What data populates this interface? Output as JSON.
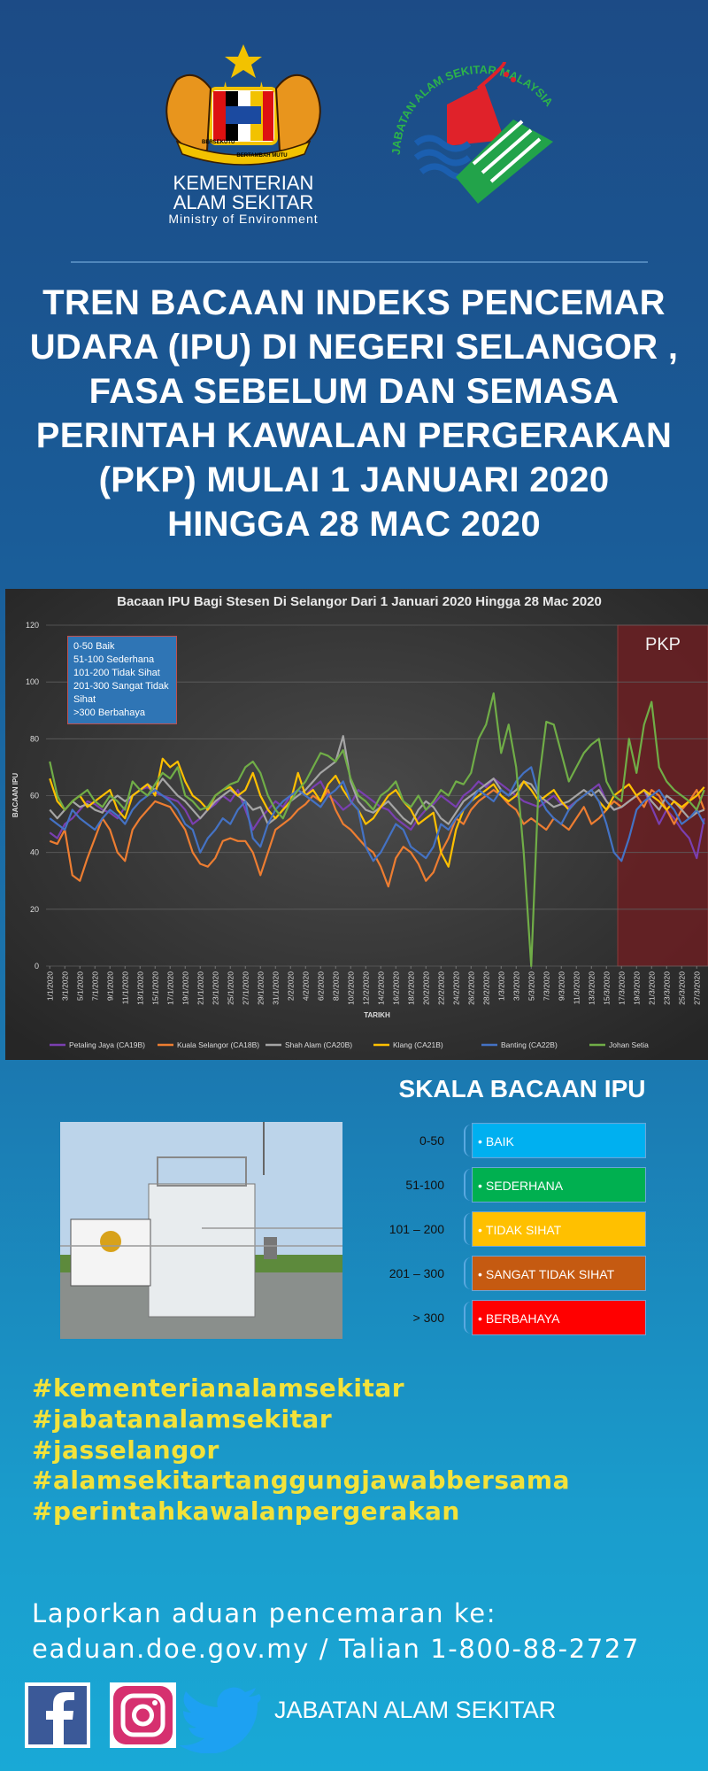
{
  "header": {
    "ministry": {
      "motto_left": "BERSEKUTU",
      "motto_right": "BERTAMBAH MUTU",
      "line1": "KEMENTERIAN",
      "line2": "ALAM SEKITAR",
      "english": "Ministry of Environment"
    },
    "department_logo": "JABATAN ALAM SEKITAR MALAYSIA"
  },
  "title": [
    "TREN BACAAN INDEKS PENCEMAR",
    "UDARA (IPU) DI NEGERI SELANGOR ,",
    "FASA SEBELUM DAN SEMASA",
    "PERINTAH KAWALAN PERGERAKAN",
    "(PKP) MULAI 1 JANUARI 2020",
    "HINGGA 28 MAC 2020"
  ],
  "chart_data": {
    "type": "line",
    "title": "Bacaan  IPU Bagi Stesen  Di Selangor  Dari  1 Januari  2020 Hingga  28 Mac 2020",
    "y_label": "BACAAN IPU",
    "x_label": "TARIKH",
    "legend_note": [
      "0-50 Baik",
      "51-100 Sederhana",
      "101-200  Tidak Sihat",
      "201-300 Sangat Tidak Sihat",
      ">300 Berbahaya"
    ],
    "highlight": {
      "label": "PKP",
      "from": "17/3/2020",
      "color": "#6b1f22"
    },
    "ylim": [
      0,
      120
    ],
    "yticks": [
      0,
      20,
      40,
      60,
      80,
      100,
      120
    ],
    "grid": true,
    "categories": [
      "1/1/2020",
      null,
      "3/1/2020",
      null,
      "5/1/2020",
      null,
      "7/1/2020",
      null,
      "9/1/2020",
      null,
      "11/1/2020",
      null,
      "13/1/2020",
      null,
      "15/1/2020",
      null,
      "17/1/2020",
      null,
      "19/1/2020",
      null,
      "21/1/2020",
      null,
      "23/1/2020",
      null,
      "25/1/2020",
      null,
      "27/1/2020",
      null,
      "29/1/2020",
      null,
      "31/1/2020",
      null,
      "2/2/2020",
      null,
      "4/2/2020",
      null,
      "6/2/2020",
      null,
      "8/2/2020",
      null,
      "10/2/2020",
      null,
      "12/2/2020",
      null,
      "14/2/2020",
      null,
      "16/2/2020",
      null,
      "18/2/2020",
      null,
      "20/2/2020",
      null,
      "22/2/2020",
      null,
      "24/2/2020",
      null,
      "26/2/2020",
      null,
      "28/2/2020",
      null,
      "1/3/2020",
      null,
      "3/3/2020",
      null,
      "5/3/2020",
      null,
      "7/3/2020",
      null,
      "9/3/2020",
      null,
      "11/3/2020",
      null,
      "13/3/2020",
      null,
      "15/3/2020",
      null,
      "17/3/2020",
      null,
      "19/3/2020",
      null,
      "21/3/2020",
      null,
      "23/3/2020",
      null,
      "25/3/2020",
      null,
      "27/3/2020",
      null
    ],
    "series": [
      {
        "name": "Petaling Jaya (CA19B)",
        "color": "#7a3fb0",
        "values": [
          47,
          45,
          50,
          52,
          55,
          58,
          57,
          55,
          54,
          52,
          56,
          60,
          62,
          63,
          61,
          60,
          59,
          58,
          55,
          50,
          52,
          55,
          57,
          60,
          58,
          62,
          55,
          48,
          52,
          55,
          58,
          56,
          60,
          62,
          60,
          63,
          65,
          60,
          58,
          55,
          57,
          62,
          60,
          58,
          56,
          55,
          52,
          50,
          48,
          52,
          55,
          57,
          60,
          58,
          56,
          60,
          62,
          65,
          63,
          66,
          64,
          62,
          60,
          58,
          57,
          56,
          58,
          60,
          57,
          56,
          58,
          60,
          62,
          64,
          58,
          55,
          56,
          58,
          60,
          62,
          56,
          50,
          55,
          52,
          48,
          45,
          38,
          52
        ]
      },
      {
        "name": "Kuala Selangor (CA18B)",
        "color": "#ed7d31",
        "values": [
          44,
          43,
          48,
          32,
          30,
          38,
          45,
          52,
          48,
          40,
          37,
          48,
          52,
          55,
          58,
          57,
          56,
          52,
          48,
          40,
          36,
          35,
          38,
          44,
          45,
          44,
          44,
          40,
          32,
          40,
          48,
          50,
          52,
          55,
          57,
          60,
          58,
          62,
          55,
          50,
          48,
          45,
          42,
          40,
          35,
          28,
          38,
          42,
          40,
          36,
          30,
          33,
          40,
          45,
          52,
          50,
          55,
          58,
          60,
          62,
          60,
          57,
          55,
          50,
          52,
          50,
          48,
          52,
          50,
          48,
          52,
          56,
          50,
          52,
          55,
          58,
          56,
          58,
          60,
          56,
          62,
          60,
          55,
          50,
          55,
          58,
          62,
          55
        ]
      },
      {
        "name": "Shah Alam (CA20B)",
        "color": "#a5a5a5",
        "values": [
          55,
          52,
          55,
          58,
          56,
          57,
          55,
          54,
          58,
          60,
          58,
          60,
          62,
          64,
          62,
          66,
          63,
          60,
          58,
          55,
          52,
          55,
          58,
          60,
          62,
          60,
          58,
          55,
          56,
          50,
          52,
          55,
          58,
          60,
          62,
          65,
          68,
          70,
          72,
          81,
          65,
          58,
          55,
          54,
          56,
          58,
          55,
          52,
          50,
          55,
          58,
          56,
          52,
          50,
          54,
          58,
          60,
          62,
          64,
          66,
          62,
          60,
          62,
          65,
          64,
          60,
          58,
          56,
          57,
          58,
          60,
          62,
          60,
          62,
          58,
          55,
          56,
          58,
          60,
          62,
          58,
          55,
          60,
          58,
          55,
          52,
          54,
          55
        ]
      },
      {
        "name": "Klang (CA21B)",
        "color": "#ffc000",
        "values": [
          66,
          58,
          55,
          58,
          60,
          56,
          58,
          60,
          62,
          55,
          52,
          60,
          62,
          64,
          60,
          73,
          70,
          72,
          65,
          60,
          58,
          55,
          60,
          62,
          63,
          60,
          62,
          68,
          60,
          55,
          52,
          55,
          58,
          68,
          60,
          62,
          58,
          64,
          67,
          62,
          58,
          55,
          50,
          52,
          56,
          60,
          62,
          58,
          55,
          50,
          52,
          54,
          40,
          35,
          48,
          55,
          58,
          60,
          62,
          64,
          60,
          58,
          60,
          65,
          62,
          58,
          60,
          62,
          58,
          55,
          58,
          60,
          62,
          58,
          55,
          60,
          62,
          64,
          60,
          62,
          60,
          58,
          55,
          58,
          56,
          58,
          60,
          63
        ]
      },
      {
        "name": "Banting (CA22B)",
        "color": "#4472c4",
        "values": [
          52,
          50,
          48,
          55,
          52,
          50,
          48,
          52,
          55,
          53,
          50,
          55,
          58,
          60,
          62,
          60,
          58,
          55,
          50,
          48,
          40,
          45,
          48,
          52,
          50,
          55,
          58,
          45,
          42,
          50,
          55,
          58,
          60,
          62,
          60,
          58,
          56,
          60,
          62,
          65,
          58,
          55,
          42,
          37,
          40,
          45,
          50,
          48,
          42,
          40,
          38,
          42,
          50,
          48,
          52,
          55,
          58,
          62,
          60,
          58,
          62,
          60,
          65,
          68,
          70,
          60,
          55,
          52,
          50,
          55,
          58,
          60,
          62,
          58,
          50,
          40,
          37,
          45,
          55,
          58,
          60,
          62,
          58,
          55,
          50,
          52,
          55,
          50
        ]
      },
      {
        "name": "Johan Setia",
        "color": "#70ad47",
        "values": [
          72,
          60,
          55,
          58,
          60,
          62,
          58,
          56,
          60,
          58,
          55,
          65,
          62,
          60,
          64,
          68,
          66,
          70,
          60,
          58,
          55,
          56,
          60,
          62,
          64,
          65,
          70,
          72,
          68,
          60,
          55,
          52,
          58,
          62,
          65,
          70,
          75,
          74,
          72,
          76,
          66,
          60,
          58,
          55,
          60,
          62,
          65,
          58,
          56,
          60,
          55,
          58,
          62,
          60,
          65,
          64,
          68,
          80,
          85,
          96,
          75,
          85,
          70,
          40,
          0,
          65,
          86,
          85,
          75,
          65,
          70,
          75,
          78,
          80,
          65,
          60,
          58,
          80,
          68,
          85,
          93,
          70,
          65,
          62,
          60,
          58,
          55,
          62
        ]
      }
    ]
  },
  "scale": {
    "title": "SKALA BACAAN IPU",
    "rows": [
      {
        "range": "0-50",
        "label": "BAIK",
        "color": "#00b0f0"
      },
      {
        "range": "51-100",
        "label": "SEDERHANA",
        "color": "#00b050"
      },
      {
        "range": "101 – 200",
        "label": "TIDAK SIHAT",
        "color": "#ffc000"
      },
      {
        "range": "201 – 300",
        "label": "SANGAT TIDAK SIHAT",
        "color": "#c55a11"
      },
      {
        "range": "> 300",
        "label": "BERBAHAYA",
        "color": "#ff0000"
      }
    ]
  },
  "hashtags": [
    "#kementerianalamsekitar",
    "#jabatanalamsekitar",
    "#jasselangor",
    "#alamsekitartanggungjawabbersama",
    "#perintahkawalanpergerakan"
  ],
  "report": {
    "line1": "Laporkan aduan pencemaran ke:",
    "line2": "eaduan.doe.gov.my / Talian 1-800-88-2727"
  },
  "footer": "JABATAN ALAM SEKITAR"
}
